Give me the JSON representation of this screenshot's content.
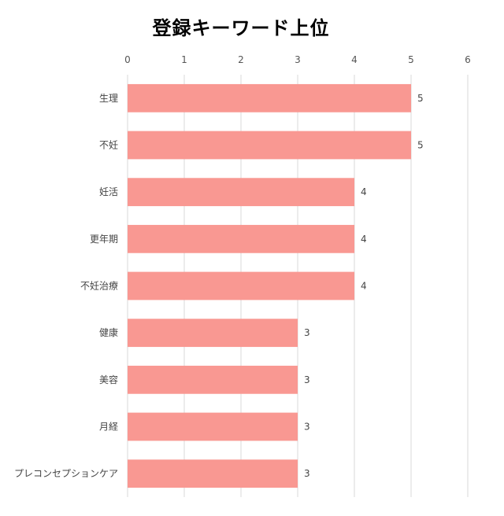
{
  "chart_data": {
    "type": "bar",
    "orientation": "horizontal",
    "title": "登録キーワード上位",
    "categories": [
      "生理",
      "不妊",
      "妊活",
      "更年期",
      "不妊治療",
      "健康",
      "美容",
      "月経",
      "プレコンセプションケア"
    ],
    "values": [
      5,
      5,
      4,
      4,
      4,
      3,
      3,
      3,
      3
    ],
    "xlim": [
      0,
      6
    ],
    "x_ticks": [
      "0",
      "1",
      "2",
      "3",
      "4",
      "5",
      "6"
    ],
    "axis_position": "top",
    "grid": true,
    "data_labels": true,
    "bar_color": "#F99892",
    "grid_color": "#D9D9D9"
  }
}
